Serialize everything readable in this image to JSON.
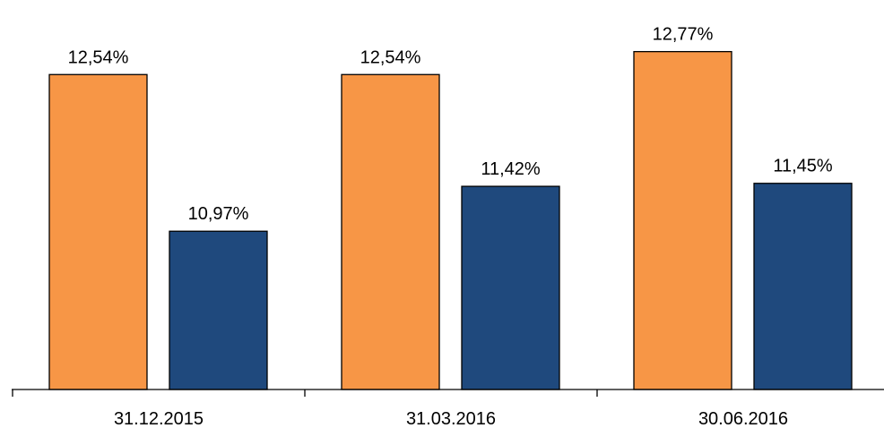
{
  "chart_data": {
    "type": "bar",
    "categories": [
      "31.12.2015",
      "31.03.2016",
      "30.06.2016"
    ],
    "series": [
      {
        "values": [
          12.54,
          12.54,
          12.77
        ],
        "labels": [
          "12,54%",
          "12,54%",
          "12,77%"
        ],
        "color": "#F79646"
      },
      {
        "values": [
          10.97,
          11.42,
          11.45
        ],
        "labels": [
          "10,97%",
          "11,42%",
          "11,45%"
        ],
        "color": "#1F497D"
      }
    ],
    "title": "",
    "xlabel": "",
    "ylabel": "",
    "ylim": [
      9.384,
      13.0
    ],
    "grid": false,
    "legend": "none"
  }
}
